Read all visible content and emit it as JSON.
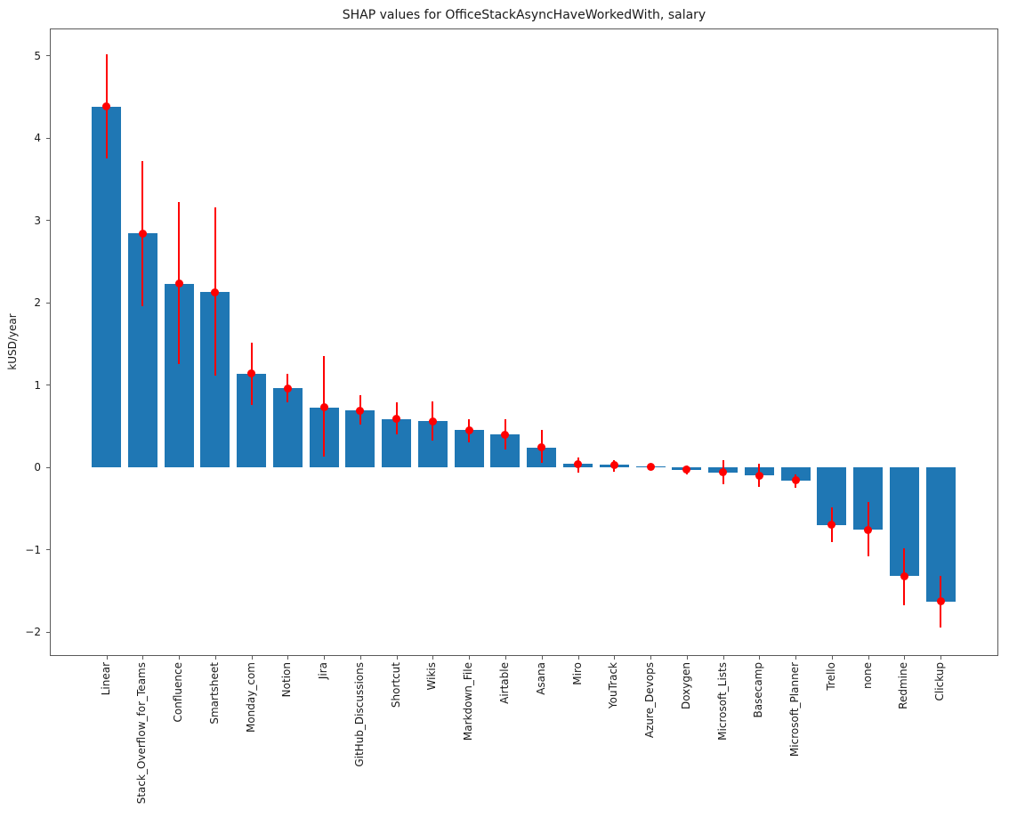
{
  "chart_data": {
    "type": "bar",
    "title": "SHAP values for OfficeStackAsyncHaveWorkedWith, salary",
    "xlabel": "",
    "ylabel": "kUSD/year",
    "ylim": [
      -2.29,
      5.33
    ],
    "yticks": [
      -2,
      -1,
      0,
      1,
      2,
      3,
      4,
      5
    ],
    "ytick_labels": [
      "−2",
      "−1",
      "0",
      "1",
      "2",
      "3",
      "4",
      "5"
    ],
    "grid": false,
    "legend": "none",
    "bar_color": "#1f77b4",
    "error_color": "#ff0000",
    "categories": [
      "Linear",
      "Stack_Overflow_for_Teams",
      "Confluence",
      "Smartsheet",
      "Monday_com",
      "Notion",
      "Jira",
      "GitHub_Discussions",
      "Shortcut",
      "Wikis",
      "Markdown_File",
      "Airtable",
      "Asana",
      "Miro",
      "YouTrack",
      "Azure_Devops",
      "Doxygen",
      "Microsoft_Lists",
      "Basecamp",
      "Microsoft_Planner",
      "Trello",
      "none",
      "Redmine",
      "Clickup"
    ],
    "values": [
      4.38,
      2.84,
      2.23,
      2.13,
      1.14,
      0.96,
      0.73,
      0.69,
      0.59,
      0.56,
      0.45,
      0.4,
      0.24,
      0.04,
      0.03,
      0.01,
      -0.03,
      -0.06,
      -0.1,
      -0.16,
      -0.7,
      -0.76,
      -1.32,
      -1.63
    ],
    "error_high": [
      5.02,
      3.72,
      3.22,
      3.16,
      1.51,
      1.14,
      1.35,
      0.88,
      0.79,
      0.8,
      0.59,
      0.59,
      0.45,
      0.12,
      0.09,
      0.02,
      0.02,
      0.09,
      0.05,
      -0.08,
      -0.49,
      -0.42,
      -0.98,
      -1.32
    ],
    "error_low": [
      3.75,
      1.96,
      1.25,
      1.12,
      0.76,
      0.79,
      0.13,
      0.52,
      0.4,
      0.33,
      0.3,
      0.22,
      0.06,
      -0.06,
      -0.05,
      0.0,
      -0.09,
      -0.2,
      -0.24,
      -0.25,
      -0.91,
      -1.08,
      -1.67,
      -1.94
    ]
  }
}
